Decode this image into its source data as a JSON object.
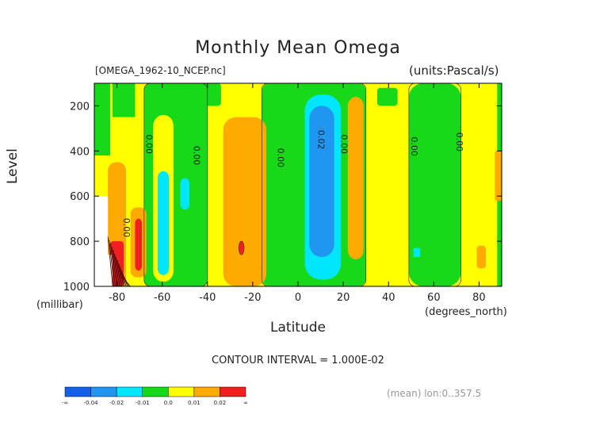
{
  "header": {
    "title": "Monthly Mean Omega",
    "filename": "[OMEGA_1962-10_NCEP.nc]",
    "units": "(units:Pascal/s)"
  },
  "axes": {
    "ylabel": "Level",
    "yunits": "(millibar)",
    "xlabel": "Latitude",
    "xunits": "(degrees_north)"
  },
  "footer": {
    "contour_interval": "CONTOUR INTERVAL = 1.000E-02",
    "mean_note": "(mean) lon:0..357.5"
  },
  "colors": {
    "band_minus_inf": "#1560e8",
    "band_minus_004": "#2196f0",
    "band_minus_002": "#00e6ff",
    "band_minus_001": "#17d917",
    "band_0": "#ffff00",
    "band_001": "#ffaa00",
    "band_002": "#f02020",
    "missing": "#ffffff"
  },
  "chart_data": {
    "type": "heatmap",
    "x_range": [
      -90,
      90
    ],
    "y_range": [
      1000,
      100
    ],
    "x_ticks": [
      "-80",
      "-60",
      "-40",
      "-20",
      "0",
      "20",
      "40",
      "60",
      "80"
    ],
    "y_ticks": [
      "200",
      "400",
      "600",
      "800",
      "1000"
    ],
    "colorbar": {
      "labels": [
        "-∞",
        "-0.04",
        "-0.02",
        "-0.01",
        "0.0",
        "0.01",
        "0.02",
        "∞"
      ],
      "colors": [
        "#1560e8",
        "#2196f0",
        "#00e6ff",
        "#17d917",
        "#ffff00",
        "#ffaa00",
        "#f02020"
      ]
    },
    "contour_labels": [
      {
        "text": "0.00",
        "lat": -67,
        "level": 370
      },
      {
        "text": "0.00",
        "lat": -46,
        "level": 420
      },
      {
        "text": "0.00",
        "lat": -9,
        "level": 430
      },
      {
        "text": "0.02",
        "lat": 9,
        "level": 350
      },
      {
        "text": "0.00",
        "lat": 19,
        "level": 370
      },
      {
        "text": "0.00",
        "lat": 50,
        "level": 380
      },
      {
        "text": "0.00",
        "lat": 70,
        "level": 360
      },
      {
        "text": "0.00",
        "lat": -77,
        "level": 740
      }
    ]
  }
}
